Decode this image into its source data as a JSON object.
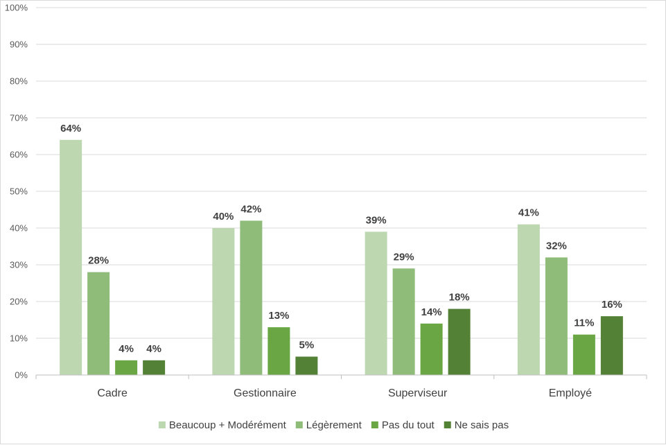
{
  "chart_data": {
    "type": "bar",
    "categories": [
      "Cadre",
      "Gestionnaire",
      "Superviseur",
      "Employé"
    ],
    "series": [
      {
        "name": "Beaucoup + Modérément",
        "values": [
          64,
          40,
          39,
          41
        ],
        "labels": [
          "64%",
          "40%",
          "39%",
          "41%"
        ],
        "color": "#bdd7b1"
      },
      {
        "name": "Légèrement",
        "values": [
          28,
          42,
          29,
          32
        ],
        "labels": [
          "28%",
          "42%",
          "29%",
          "32%"
        ],
        "color": "#8fbd79"
      },
      {
        "name": "Pas du tout",
        "values": [
          4,
          13,
          14,
          11
        ],
        "labels": [
          "4%",
          "13%",
          "14%",
          "11%"
        ],
        "color": "#6aa744"
      },
      {
        "name": "Ne sais pas",
        "values": [
          4,
          5,
          18,
          16
        ],
        "labels": [
          "4%",
          "5%",
          "18%",
          "16%"
        ],
        "color": "#538135"
      }
    ],
    "yticks": [
      "0%",
      "10%",
      "20%",
      "30%",
      "40%",
      "50%",
      "60%",
      "70%",
      "80%",
      "90%",
      "100%"
    ],
    "ylim": [
      0,
      100
    ],
    "grid": true,
    "legend": "bottom",
    "title": "",
    "xlabel": "",
    "ylabel": ""
  }
}
